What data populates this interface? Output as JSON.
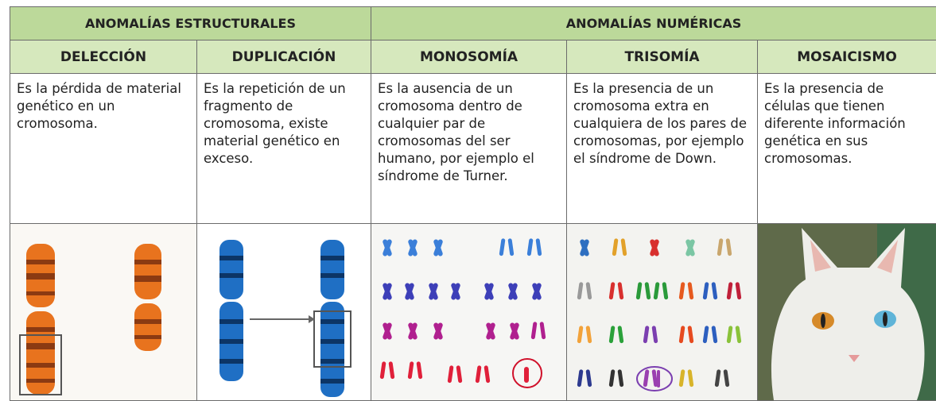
{
  "table": {
    "groups": [
      "ANOMALÍAS ESTRUCTURALES",
      "ANOMALÍAS NUMÉRICAS"
    ],
    "columns": [
      "DELECCIÓN",
      "DUPLICACIÓN",
      "MONOSOMÍA",
      "TRISOMÍA",
      "MOSAICISMO"
    ],
    "descriptions": [
      "Es la pérdida de material genético en un cromosoma.",
      "Es la repetición de un fragmento de cromosoma, existe material genético en exceso.",
      "Es la ausencia de un cromosoma dentro de cualquier par de cromosomas del ser humano, por ejemplo el síndrome de Turner.",
      "Es la presencia de un cromosoma extra en cualquiera de los pares de cromosomas, por ejemplo el síndrome de Down.",
      "Es la presencia de células que tienen diferente información genética en sus cromosomas."
    ]
  }
}
